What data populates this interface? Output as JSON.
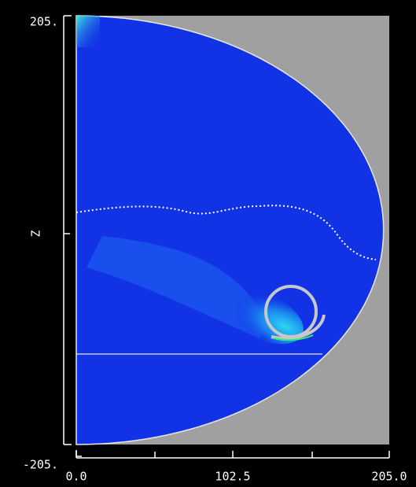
{
  "chart_data": {
    "type": "field",
    "y_label": "Z",
    "xlim": [
      0,
      205
    ],
    "ylim": [
      -205,
      205
    ],
    "xticks": [
      {
        "value": 0,
        "label": "0.0"
      },
      102.5,
      {
        "value": 205,
        "label": "205.0"
      }
    ],
    "yticks": [
      {
        "value": 205,
        "label": "205."
      },
      {
        "value": -205,
        "label": "-205."
      }
    ]
  }
}
